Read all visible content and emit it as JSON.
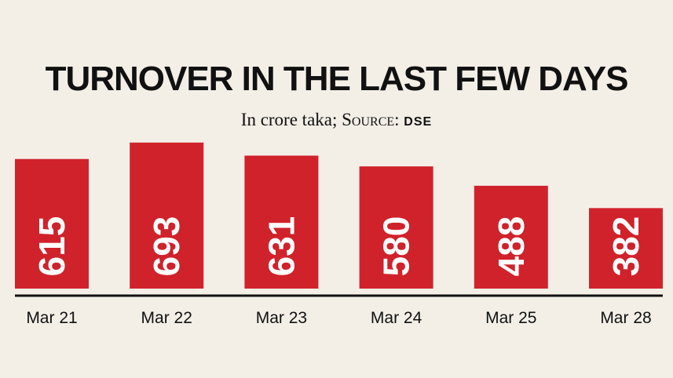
{
  "title": "TURNOVER IN THE LAST FEW DAYS",
  "subtitle": {
    "unit_text": "In crore taka;",
    "source_label": "Source:",
    "source": "DSE"
  },
  "colors": {
    "bar": "#d0222b",
    "bar_label": "#ffffff",
    "axis": "#111111",
    "background": "#f3efe7"
  },
  "chart_data": {
    "type": "bar",
    "title": "TURNOVER IN THE LAST FEW DAYS",
    "subtitle": "In crore taka; Source: DSE",
    "categories": [
      "Mar 21",
      "Mar 22",
      "Mar 23",
      "Mar 24",
      "Mar 25",
      "Mar 28"
    ],
    "values": [
      615,
      693,
      631,
      580,
      488,
      382
    ],
    "ylabel": "",
    "xlabel": "",
    "grid": false,
    "legend": "none"
  }
}
